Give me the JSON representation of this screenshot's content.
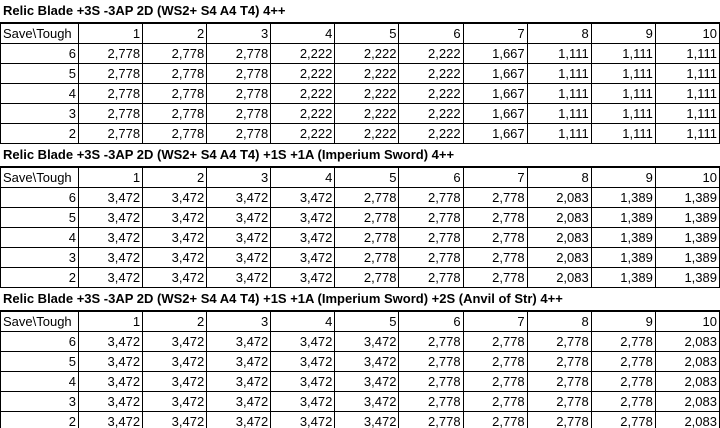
{
  "tables": [
    {
      "title": "Relic Blade +3S -3AP 2D (WS2+ S4 A4 T4) 4++",
      "header": [
        "Save\\Tough",
        "1",
        "2",
        "3",
        "4",
        "5",
        "6",
        "7",
        "8",
        "9",
        "10"
      ],
      "rows": [
        [
          "6",
          "2,778",
          "2,778",
          "2,778",
          "2,222",
          "2,222",
          "2,222",
          "1,667",
          "1,111",
          "1,111",
          "1,111"
        ],
        [
          "5",
          "2,778",
          "2,778",
          "2,778",
          "2,222",
          "2,222",
          "2,222",
          "1,667",
          "1,111",
          "1,111",
          "1,111"
        ],
        [
          "4",
          "2,778",
          "2,778",
          "2,778",
          "2,222",
          "2,222",
          "2,222",
          "1,667",
          "1,111",
          "1,111",
          "1,111"
        ],
        [
          "3",
          "2,778",
          "2,778",
          "2,778",
          "2,222",
          "2,222",
          "2,222",
          "1,667",
          "1,111",
          "1,111",
          "1,111"
        ],
        [
          "2",
          "2,778",
          "2,778",
          "2,778",
          "2,222",
          "2,222",
          "2,222",
          "1,667",
          "1,111",
          "1,111",
          "1,111"
        ]
      ]
    },
    {
      "title": "Relic Blade +3S -3AP 2D (WS2+ S4 A4 T4) +1S +1A (Imperium Sword) 4++",
      "header": [
        "Save\\Tough",
        "1",
        "2",
        "3",
        "4",
        "5",
        "6",
        "7",
        "8",
        "9",
        "10"
      ],
      "rows": [
        [
          "6",
          "3,472",
          "3,472",
          "3,472",
          "3,472",
          "2,778",
          "2,778",
          "2,778",
          "2,083",
          "1,389",
          "1,389"
        ],
        [
          "5",
          "3,472",
          "3,472",
          "3,472",
          "3,472",
          "2,778",
          "2,778",
          "2,778",
          "2,083",
          "1,389",
          "1,389"
        ],
        [
          "4",
          "3,472",
          "3,472",
          "3,472",
          "3,472",
          "2,778",
          "2,778",
          "2,778",
          "2,083",
          "1,389",
          "1,389"
        ],
        [
          "3",
          "3,472",
          "3,472",
          "3,472",
          "3,472",
          "2,778",
          "2,778",
          "2,778",
          "2,083",
          "1,389",
          "1,389"
        ],
        [
          "2",
          "3,472",
          "3,472",
          "3,472",
          "3,472",
          "2,778",
          "2,778",
          "2,778",
          "2,083",
          "1,389",
          "1,389"
        ]
      ]
    },
    {
      "title": "Relic Blade +3S -3AP 2D (WS2+ S4 A4 T4) +1S +1A (Imperium Sword) +2S (Anvil of Str) 4++",
      "header": [
        "Save\\Tough",
        "1",
        "2",
        "3",
        "4",
        "5",
        "6",
        "7",
        "8",
        "9",
        "10"
      ],
      "rows": [
        [
          "6",
          "3,472",
          "3,472",
          "3,472",
          "3,472",
          "3,472",
          "2,778",
          "2,778",
          "2,778",
          "2,778",
          "2,083"
        ],
        [
          "5",
          "3,472",
          "3,472",
          "3,472",
          "3,472",
          "3,472",
          "2,778",
          "2,778",
          "2,778",
          "2,778",
          "2,083"
        ],
        [
          "4",
          "3,472",
          "3,472",
          "3,472",
          "3,472",
          "3,472",
          "2,778",
          "2,778",
          "2,778",
          "2,778",
          "2,083"
        ],
        [
          "3",
          "3,472",
          "3,472",
          "3,472",
          "3,472",
          "3,472",
          "2,778",
          "2,778",
          "2,778",
          "2,778",
          "2,083"
        ],
        [
          "2",
          "3,472",
          "3,472",
          "3,472",
          "3,472",
          "3,472",
          "2,778",
          "2,778",
          "2,778",
          "2,778",
          "2,083"
        ]
      ]
    }
  ]
}
